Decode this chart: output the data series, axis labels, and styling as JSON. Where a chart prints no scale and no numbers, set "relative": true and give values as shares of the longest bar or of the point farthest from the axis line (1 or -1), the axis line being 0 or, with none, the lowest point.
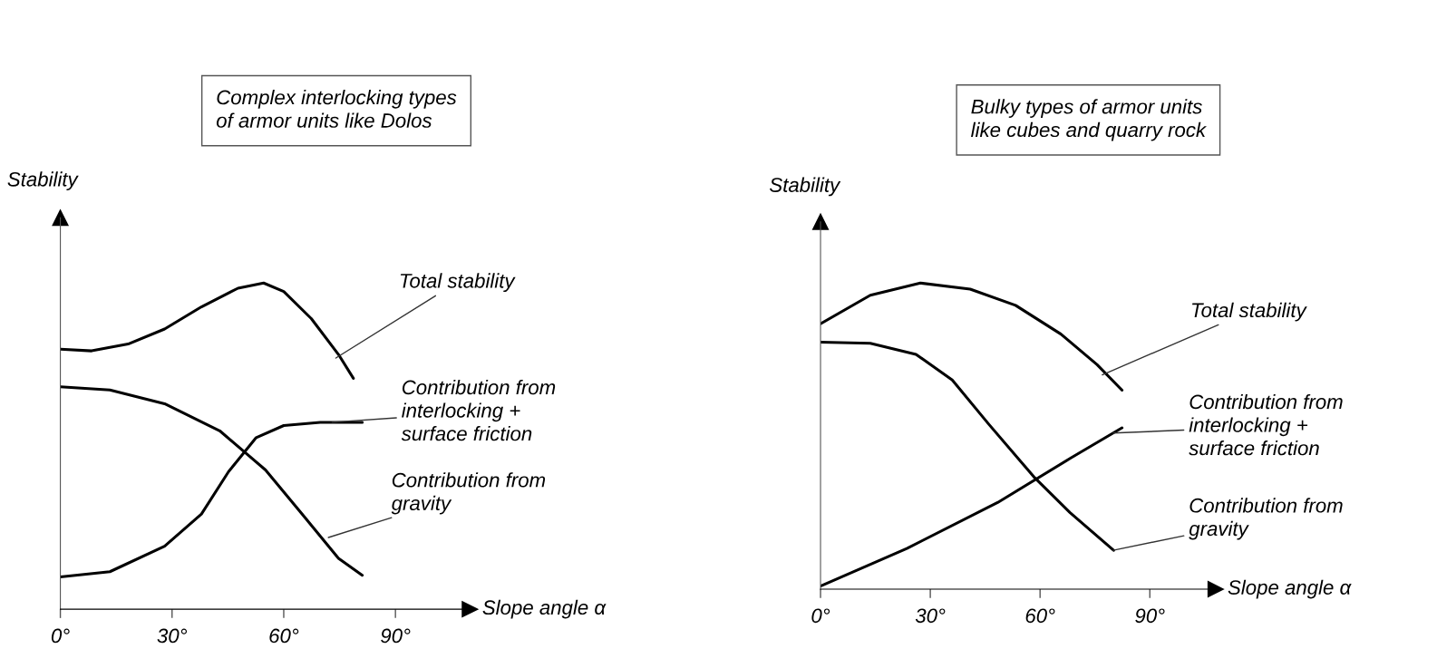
{
  "chart_data": [
    {
      "type": "line",
      "title": "Complex interlocking types\nof armor units like Dolos",
      "xlabel": "Slope angle α",
      "ylabel": "Stability",
      "relative": true,
      "xlim": [
        0,
        110
      ],
      "xticks": [
        {
          "value": 0,
          "label": "0°"
        },
        {
          "value": 30,
          "label": "30°"
        },
        {
          "value": 60,
          "label": "60°"
        },
        {
          "value": 90,
          "label": "90°"
        }
      ],
      "grid": false,
      "legend": false,
      "marker": "none",
      "line_style": "solid",
      "series": [
        {
          "color": "#000000",
          "x": [
            0,
            8.4,
            18.2,
            28,
            37.9,
            47.7,
            54.6,
            60,
            67.4,
            74.7,
            78.7
          ],
          "values": [
            0.797,
            0.792,
            0.813,
            0.859,
            0.927,
            0.984,
            1,
            0.974,
            0.891,
            0.781,
            0.708
          ]
        },
        {
          "color": "#000000",
          "x": [
            0,
            13.3,
            28,
            37.9,
            45.2,
            52.6,
            60,
            69.8,
            81.1
          ],
          "values": [
            0.099,
            0.115,
            0.193,
            0.292,
            0.422,
            0.526,
            0.563,
            0.573,
            0.573
          ]
        },
        {
          "color": "#000000",
          "x": [
            0,
            13.3,
            28,
            42.8,
            55.1,
            64.9,
            74.7,
            81.1
          ],
          "values": [
            0.682,
            0.672,
            0.63,
            0.547,
            0.427,
            0.292,
            0.156,
            0.104
          ]
        }
      ],
      "annotations": [
        {
          "text": "Total stability",
          "x": 74,
          "y": 0.77
        },
        {
          "text": "Contribution from\ninterlocking +\nsurface friction",
          "x": 73,
          "y": 0.573
        },
        {
          "text": "Contribution from\ngravity",
          "x": 72,
          "y": 0.22
        }
      ]
    },
    {
      "type": "line",
      "title": "Bulky types of armor units\nlike cubes and quarry rock",
      "xlabel": "Slope angle α",
      "ylabel": "Stability",
      "relative": true,
      "xlim": [
        0,
        108
      ],
      "xticks": [
        {
          "value": 0,
          "label": "0°"
        },
        {
          "value": 30,
          "label": "30°"
        },
        {
          "value": 60,
          "label": "60°"
        },
        {
          "value": 90,
          "label": "90°"
        }
      ],
      "grid": false,
      "legend": false,
      "marker": "none",
      "line_style": "solid",
      "series": [
        {
          "color": "#000000",
          "x": [
            0,
            13.6,
            27.3,
            40.9,
            53.3,
            65.7,
            75.6,
            82.4
          ],
          "values": [
            0.867,
            0.96,
            1,
            0.98,
            0.927,
            0.833,
            0.733,
            0.65
          ]
        },
        {
          "color": "#000000",
          "x": [
            0,
            23.6,
            48.4,
            68.2,
            82.4
          ],
          "values": [
            0.01,
            0.133,
            0.283,
            0.427,
            0.527
          ]
        },
        {
          "color": "#000000",
          "x": [
            0,
            13.6,
            26.1,
            36,
            45.9,
            58.3,
            68.2,
            80.1
          ],
          "values": [
            0.807,
            0.803,
            0.767,
            0.683,
            0.54,
            0.367,
            0.25,
            0.127
          ]
        }
      ],
      "annotations": [
        {
          "text": "Total stability",
          "x": 77,
          "y": 0.7
        },
        {
          "text": "Contribution from\ninterlocking +\nsurface friction",
          "x": 80,
          "y": 0.51
        },
        {
          "text": "Contribution from\ngravity",
          "x": 80,
          "y": 0.127
        }
      ]
    }
  ]
}
